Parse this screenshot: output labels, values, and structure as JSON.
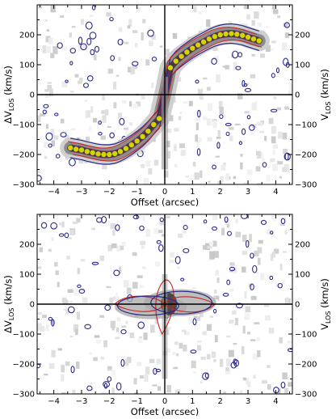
{
  "chart_data": [
    {
      "type": "position-velocity",
      "xlabel": "Offset (arcsec)",
      "ylabel_left": "ΔV",
      "ylabel_left_sub": "LOS",
      "ylabel_left_unit": " (km/s)",
      "ylabel_right": "V",
      "ylabel_right_sub": "LOS",
      "ylabel_right_unit": " (km/s)",
      "xlim": [
        -4.6,
        4.6
      ],
      "ylim": [
        -300,
        300
      ],
      "xticks": [
        -4,
        -3,
        -2,
        -1,
        0,
        1,
        2,
        3,
        4
      ],
      "yticks": [
        -300,
        -200,
        -100,
        0,
        100,
        200
      ],
      "yticks_right": [
        -300,
        -200,
        -100,
        0,
        100,
        200
      ],
      "colors": {
        "model_points": "#d4d400",
        "red_contour": "#cc2222",
        "blue_contour": "#2a2a8c"
      },
      "series": [
        {
          "x": [
            -3.4,
            -3.2,
            -3.0,
            -2.8,
            -2.6,
            -2.4,
            -2.2,
            -2.0,
            -1.8,
            -1.6,
            -1.4,
            -1.2,
            -1.0,
            -0.8,
            -0.6,
            -0.4,
            -0.2,
            0.2,
            0.4,
            0.6,
            0.8,
            1.0,
            1.2,
            1.4,
            1.6,
            1.8,
            2.0,
            2.2,
            2.4,
            2.6,
            2.8,
            3.0,
            3.2,
            3.4
          ],
          "y": [
            -178,
            -182,
            -185,
            -190,
            -194,
            -198,
            -200,
            -200,
            -197,
            -190,
            -180,
            -168,
            -155,
            -140,
            -122,
            -100,
            -80,
            90,
            112,
            128,
            142,
            155,
            166,
            176,
            186,
            194,
            200,
            203,
            204,
            202,
            198,
            192,
            186,
            180
          ]
        }
      ]
    },
    {
      "type": "position-velocity",
      "xlabel": "Offset (arcsec)",
      "ylabel_left": "ΔV",
      "ylabel_left_sub": "LOS",
      "ylabel_left_unit": " (km/s)",
      "ylabel_right": "V",
      "ylabel_right_sub": "LOS",
      "ylabel_right_unit": " (km/s)",
      "xlim": [
        -4.6,
        4.6
      ],
      "ylim": [
        -300,
        300
      ],
      "xticks": [
        -4,
        -3,
        -2,
        -1,
        0,
        1,
        2,
        3,
        4
      ],
      "yticks": [
        -300,
        -200,
        -100,
        0,
        100,
        200
      ],
      "yticks_right": [
        -300,
        -200,
        -100,
        0,
        100,
        200
      ],
      "colors": {
        "red_contour": "#cc2222",
        "blue_contour": "#2a2a8c"
      }
    }
  ]
}
